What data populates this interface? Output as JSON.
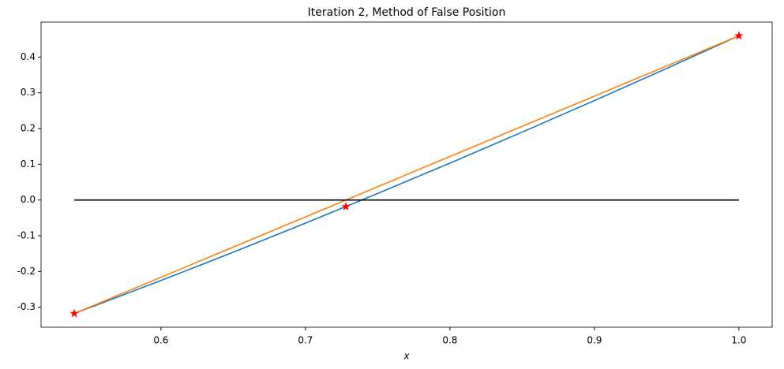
{
  "chart_data": {
    "type": "line",
    "title": "Iteration 2, Method of False Position",
    "x_label": "x",
    "series": [
      {
        "color": "#1f77b4",
        "line": true,
        "x": [
          0.54,
          0.6,
          0.65,
          0.7,
          0.75,
          0.8,
          0.85,
          0.9,
          0.95,
          1.0
        ],
        "values": [
          -0.3177,
          -0.2253,
          -0.1461,
          -0.0648,
          0.0183,
          0.1033,
          0.19,
          0.2784,
          0.3683,
          0.4597
        ]
      },
      {
        "color": "#ff7f0e",
        "line": true,
        "x": [
          0.54,
          1.0
        ],
        "values": [
          -0.3177,
          0.4597
        ]
      },
      {
        "color": "#000000",
        "line": true,
        "x": [
          0.54,
          1.0
        ],
        "values": [
          0,
          0
        ]
      },
      {
        "color": "#ff0000",
        "line": false,
        "marker": "star",
        "x": [
          0.54,
          0.728,
          1.0
        ],
        "values": [
          -0.3177,
          -0.0185,
          0.4597
        ]
      }
    ],
    "xlim": [
      0.517,
      1.023
    ],
    "ylim": [
      -0.356,
      0.498
    ],
    "xticks": [
      0.6,
      0.7,
      0.8,
      0.9,
      {
        "value": 1.0,
        "label": "1.0"
      }
    ],
    "yticks": [
      -0.3,
      -0.2,
      -0.1,
      {
        "value": 0,
        "label": "0.0"
      },
      0.1,
      0.2,
      0.3,
      0.4
    ]
  }
}
